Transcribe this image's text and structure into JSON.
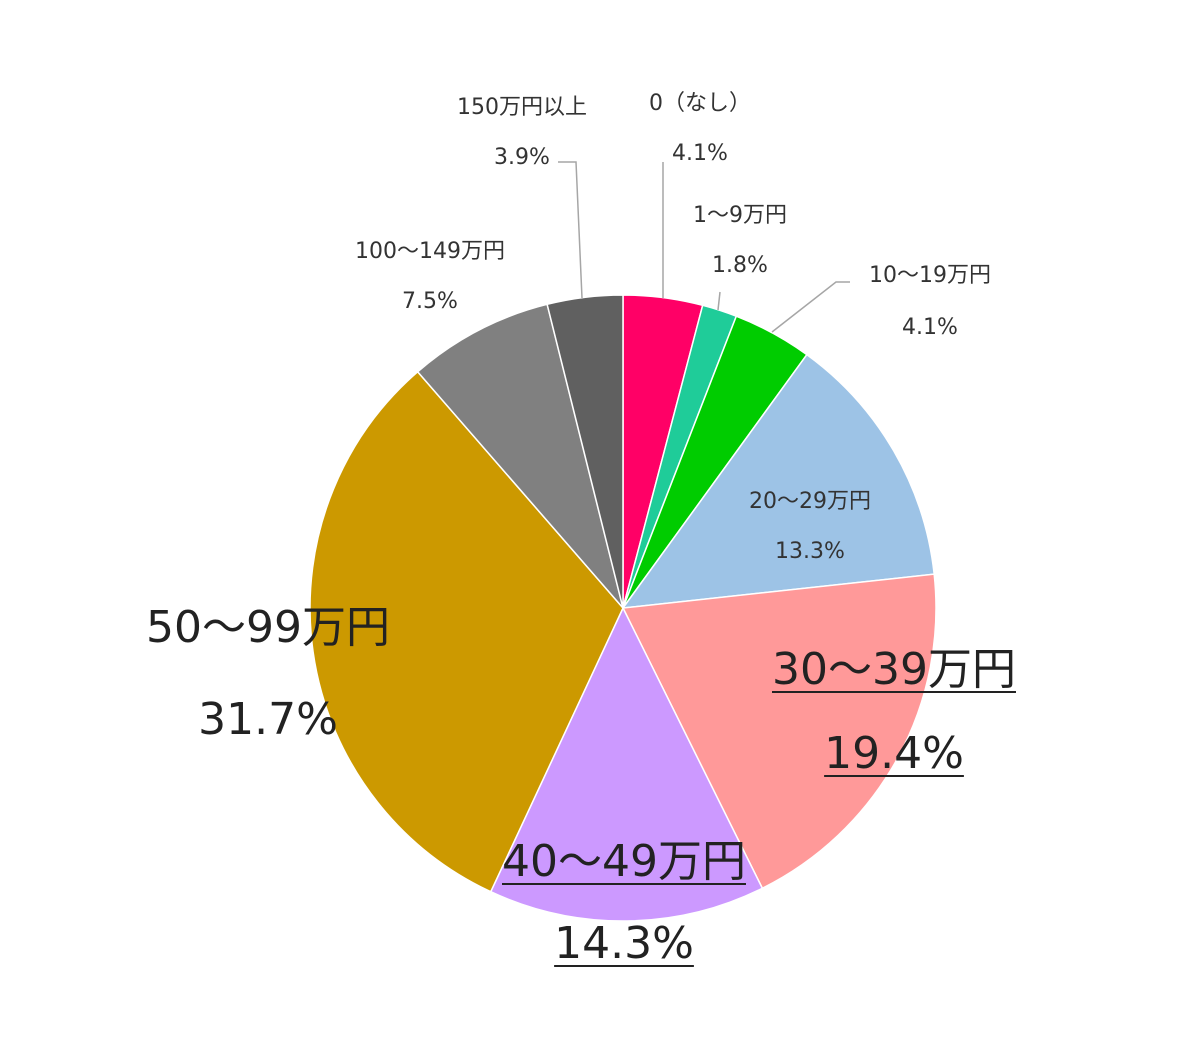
{
  "chart_data": {
    "type": "pie",
    "slices": [
      {
        "label": "0（なし）",
        "percent": "4.1%",
        "value": 4.1,
        "color": "#FF0066",
        "underline": false,
        "size": "small"
      },
      {
        "label": "1～9万円",
        "percent": "1.8%",
        "value": 1.8,
        "color": "#1FCC99",
        "underline": false,
        "size": "small"
      },
      {
        "label": "10～19万円",
        "percent": "4.1%",
        "value": 4.1,
        "color": "#00CC00",
        "underline": false,
        "size": "small"
      },
      {
        "label": "20～29万円",
        "percent": "13.3%",
        "value": 13.3,
        "color": "#9DC3E6",
        "underline": false,
        "size": "medium"
      },
      {
        "label": "30～39万円",
        "percent": "19.4%",
        "value": 19.4,
        "color": "#FF9999",
        "underline": true,
        "size": "large"
      },
      {
        "label": "40～49万円",
        "percent": "14.3%",
        "value": 14.3,
        "color": "#CC99FF",
        "underline": true,
        "size": "large"
      },
      {
        "label": "50～99万円",
        "percent": "31.7%",
        "value": 31.7,
        "color": "#CC9900",
        "underline": false,
        "size": "large"
      },
      {
        "label": "100～149万円",
        "percent": "7.5%",
        "value": 7.5,
        "color": "#808080",
        "underline": false,
        "size": "small"
      },
      {
        "label": "150万円以上",
        "percent": "3.9%",
        "value": 3.9,
        "color": "#606060",
        "underline": false,
        "size": "small"
      }
    ]
  }
}
